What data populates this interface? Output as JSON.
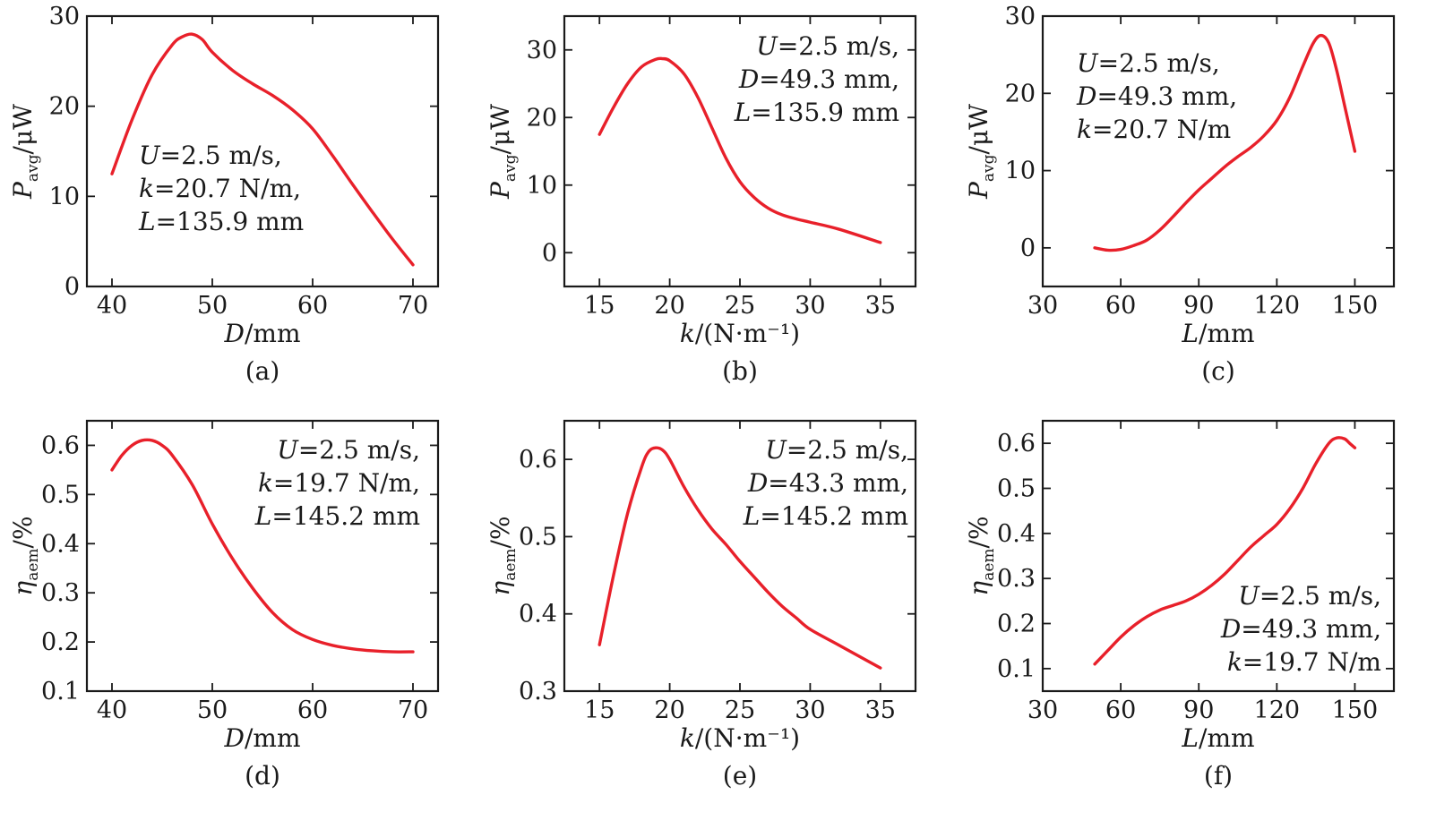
{
  "chart_data": [
    {
      "id": "a",
      "type": "line",
      "caption": "(a)",
      "xlabel": {
        "var": "D",
        "unit": "/mm"
      },
      "ylabel": {
        "var": "P",
        "sub": "avg",
        "unit": "/μW"
      },
      "xlim": [
        37.5,
        72.5
      ],
      "ylim": [
        0,
        30
      ],
      "xticks": [
        40,
        50,
        60,
        70
      ],
      "yticks": [
        0,
        10,
        20,
        30
      ],
      "annotation": [
        {
          "var": "U",
          "rest": "=2.5 m/s,"
        },
        {
          "var": "k",
          "rest": "=20.7 N/m,"
        },
        {
          "var": "L",
          "rest": "=135.9 mm"
        }
      ],
      "annotation_pos": "middle-left",
      "series": [
        {
          "color": "#e8202a",
          "x": [
            40,
            42,
            44,
            46,
            47,
            48,
            49,
            50,
            52,
            54,
            56,
            58,
            60,
            62,
            64,
            66,
            68,
            70
          ],
          "y": [
            12.5,
            18.5,
            23.5,
            26.8,
            27.7,
            28.0,
            27.4,
            26.0,
            24.0,
            22.5,
            21.2,
            19.6,
            17.5,
            14.5,
            11.3,
            8.2,
            5.2,
            2.4
          ]
        }
      ]
    },
    {
      "id": "b",
      "type": "line",
      "caption": "(b)",
      "xlabel": {
        "var": "k",
        "unit": "/(N·m⁻¹)"
      },
      "ylabel": {
        "var": "P",
        "sub": "avg",
        "unit": "/μW"
      },
      "xlim": [
        12.5,
        37.5
      ],
      "ylim": [
        -5,
        35
      ],
      "xticks": [
        15,
        20,
        25,
        30,
        35
      ],
      "yticks": [
        0,
        10,
        20,
        30
      ],
      "annotation": [
        {
          "var": "U",
          "rest": "=2.5 m/s,"
        },
        {
          "var": "D",
          "rest": "=49.3 mm,"
        },
        {
          "var": "L",
          "rest": "=135.9 mm"
        }
      ],
      "annotation_pos": "top-right",
      "series": [
        {
          "color": "#e8202a",
          "x": [
            15,
            16,
            17,
            18,
            19,
            19.5,
            20,
            21,
            22,
            23,
            24,
            25,
            26,
            27,
            28,
            29,
            30,
            32,
            35
          ],
          "y": [
            17.5,
            21.5,
            25.0,
            27.5,
            28.6,
            28.7,
            28.4,
            26.5,
            23.0,
            18.5,
            14.0,
            10.5,
            8.2,
            6.6,
            5.6,
            5.0,
            4.5,
            3.5,
            1.5
          ]
        }
      ]
    },
    {
      "id": "c",
      "type": "line",
      "caption": "(c)",
      "xlabel": {
        "var": "L",
        "unit": "/mm"
      },
      "ylabel": {
        "var": "P",
        "sub": "avg",
        "unit": "/μW"
      },
      "xlim": [
        30,
        165
      ],
      "ylim": [
        -5,
        30
      ],
      "xticks": [
        30,
        60,
        90,
        120,
        150
      ],
      "yticks": [
        0,
        10,
        20,
        30
      ],
      "annotation": [
        {
          "var": "U",
          "rest": "=2.5 m/s,"
        },
        {
          "var": "D",
          "rest": "=49.3 mm,"
        },
        {
          "var": "k",
          "rest": "=20.7 N/m"
        }
      ],
      "annotation_pos": "top-left",
      "series": [
        {
          "color": "#e8202a",
          "x": [
            50,
            55,
            60,
            65,
            70,
            75,
            80,
            85,
            90,
            95,
            100,
            105,
            110,
            115,
            120,
            125,
            130,
            134,
            137,
            140,
            143,
            146,
            150
          ],
          "y": [
            0,
            -0.3,
            -0.2,
            0.3,
            1.0,
            2.3,
            4.0,
            5.8,
            7.5,
            9.0,
            10.5,
            11.8,
            13.0,
            14.5,
            16.5,
            19.5,
            23.5,
            26.5,
            27.5,
            26.5,
            23.0,
            18.5,
            12.5
          ]
        }
      ]
    },
    {
      "id": "d",
      "type": "line",
      "caption": "(d)",
      "xlabel": {
        "var": "D",
        "unit": "/mm"
      },
      "ylabel": {
        "var": "η",
        "sub": "aem",
        "unit": "/%"
      },
      "xlim": [
        37.5,
        72.5
      ],
      "ylim": [
        0.1,
        0.65
      ],
      "xticks": [
        40,
        50,
        60,
        70
      ],
      "yticks": [
        0.1,
        0.2,
        0.3,
        0.4,
        0.5,
        0.6
      ],
      "annotation": [
        {
          "var": "U",
          "rest": "=2.5 m/s,"
        },
        {
          "var": "k",
          "rest": "=19.7 N/m,"
        },
        {
          "var": "L",
          "rest": "=145.2 mm"
        }
      ],
      "annotation_pos": "top-right",
      "series": [
        {
          "color": "#e8202a",
          "x": [
            40,
            41,
            42,
            43,
            44,
            45,
            46,
            48,
            50,
            52,
            54,
            56,
            58,
            60,
            62,
            64,
            66,
            68,
            70
          ],
          "y": [
            0.55,
            0.58,
            0.6,
            0.61,
            0.61,
            0.6,
            0.58,
            0.52,
            0.44,
            0.37,
            0.31,
            0.26,
            0.225,
            0.205,
            0.193,
            0.186,
            0.182,
            0.18,
            0.18
          ]
        }
      ]
    },
    {
      "id": "e",
      "type": "line",
      "caption": "(e)",
      "xlabel": {
        "var": "k",
        "unit": "/(N·m⁻¹)"
      },
      "ylabel": {
        "var": "η",
        "sub": "aem",
        "unit": "/%"
      },
      "xlim": [
        12.5,
        37.5
      ],
      "ylim": [
        0.3,
        0.65
      ],
      "xticks": [
        15,
        20,
        25,
        30,
        35
      ],
      "yticks": [
        0.3,
        0.4,
        0.5,
        0.6
      ],
      "annotation": [
        {
          "var": "U",
          "rest": "=2.5 m/s,"
        },
        {
          "var": "D",
          "rest": "=43.3 mm,"
        },
        {
          "var": "L",
          "rest": "=145.2 mm"
        }
      ],
      "annotation_pos": "top-right",
      "series": [
        {
          "color": "#e8202a",
          "x": [
            15,
            16,
            17,
            18,
            18.5,
            19,
            19.5,
            20,
            21,
            22,
            23,
            24,
            25,
            26,
            27,
            28,
            29,
            30,
            32,
            35
          ],
          "y": [
            0.36,
            0.45,
            0.53,
            0.59,
            0.61,
            0.615,
            0.612,
            0.6,
            0.565,
            0.535,
            0.51,
            0.49,
            0.468,
            0.448,
            0.428,
            0.41,
            0.395,
            0.38,
            0.36,
            0.33
          ]
        }
      ]
    },
    {
      "id": "f",
      "type": "line",
      "caption": "(f)",
      "xlabel": {
        "var": "L",
        "unit": "/mm"
      },
      "ylabel": {
        "var": "η",
        "sub": "aem",
        "unit": "/%"
      },
      "xlim": [
        30,
        165
      ],
      "ylim": [
        0.05,
        0.65
      ],
      "xticks": [
        30,
        60,
        90,
        120,
        150
      ],
      "yticks": [
        0.1,
        0.2,
        0.3,
        0.4,
        0.5,
        0.6
      ],
      "annotation": [
        {
          "var": "U",
          "rest": "=2.5 m/s,"
        },
        {
          "var": "D",
          "rest": "=49.3 mm,"
        },
        {
          "var": "k",
          "rest": "=19.7 N/m"
        }
      ],
      "annotation_pos": "bottom-right",
      "series": [
        {
          "color": "#e8202a",
          "x": [
            50,
            55,
            60,
            65,
            70,
            75,
            80,
            85,
            90,
            95,
            100,
            105,
            110,
            115,
            120,
            125,
            130,
            135,
            140,
            143,
            146,
            148,
            150
          ],
          "y": [
            0.11,
            0.14,
            0.17,
            0.195,
            0.215,
            0.23,
            0.24,
            0.25,
            0.265,
            0.285,
            0.31,
            0.34,
            0.37,
            0.395,
            0.42,
            0.455,
            0.5,
            0.555,
            0.6,
            0.612,
            0.61,
            0.6,
            0.59
          ]
        }
      ]
    }
  ]
}
